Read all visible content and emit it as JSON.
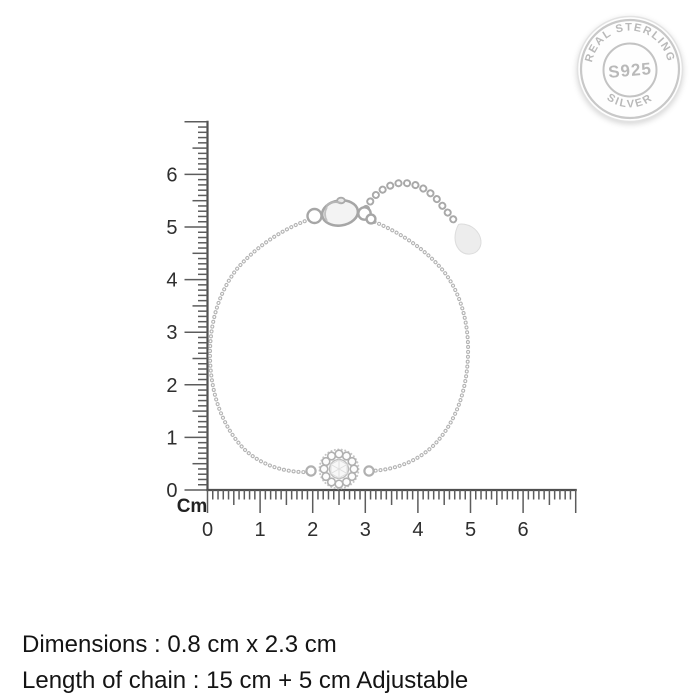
{
  "seal": {
    "top_text": "REAL STERLING",
    "bottom_text": "SILVER",
    "center_text": "S925",
    "color": "#b9b9b9"
  },
  "ruler": {
    "unit_label": "Cm",
    "x_axis": {
      "labels": [
        "0",
        "1",
        "2",
        "3",
        "4",
        "5",
        "6"
      ],
      "max_cm": 7,
      "subdivisions_per_cm": 10
    },
    "y_axis": {
      "labels": [
        "0",
        "1",
        "2",
        "3",
        "4",
        "5",
        "6"
      ],
      "max_cm": 7,
      "subdivisions_per_cm": 10
    },
    "line_color": "#4f4f4f",
    "label_color": "#2e2e2e"
  },
  "bracelet": {
    "metal_color": "#b3b3b3",
    "charm_position_cm": 2.5
  },
  "details": {
    "dimensions": "Dimensions : 0.8 cm x 2.3 cm",
    "chain_length": "Length of chain : 15 cm + 5 cm Adjustable"
  }
}
